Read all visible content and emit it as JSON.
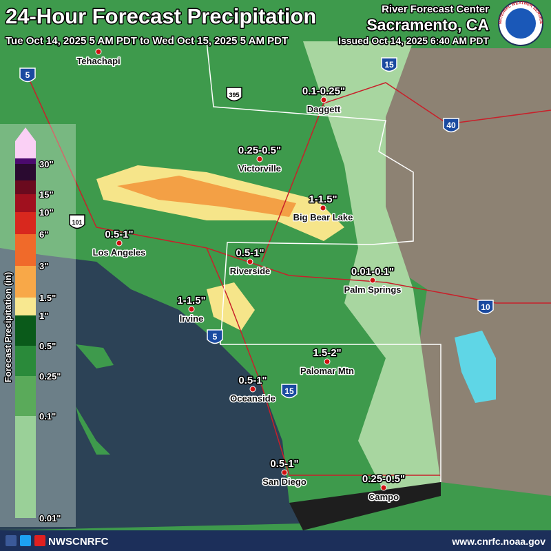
{
  "header": {
    "title": "24-Hour Forecast Precipitation",
    "period": "Tue Oct 14, 2025 5 AM PDT to Wed Oct 15, 2025 5 AM PDT",
    "office_line1": "River Forecast Center",
    "office_line2": "Sacramento, CA",
    "issued": "Issued Oct 14, 2025 6:40 AM PDT",
    "logo_text": "NATIONAL WEATHER SERVICE"
  },
  "legend": {
    "title": "Forecast Precipitation (in)",
    "labels": [
      "30\"",
      "15\"",
      "10\"",
      "6\"",
      "3\"",
      "1.5\"",
      "1\"",
      "0.5\"",
      "0.25\"",
      "0.1\"",
      "0.01\""
    ]
  },
  "places": [
    {
      "name": "Tehachapi"
    },
    {
      "name": "Daggett",
      "amount": "0.1-0.25\""
    },
    {
      "name": "Victorville",
      "amount": "0.25-0.5\""
    },
    {
      "name": "Big Bear Lake",
      "amount": "1-1.5\""
    },
    {
      "name": "Los Angeles",
      "amount": "0.5-1\""
    },
    {
      "name": "Riverside",
      "amount": "0.5-1\""
    },
    {
      "name": "Palm Springs",
      "amount": "0.01-0.1\""
    },
    {
      "name": "Irvine",
      "amount": "1-1.5\""
    },
    {
      "name": "Palomar Mtn",
      "amount": "1.5-2\""
    },
    {
      "name": "Oceanside",
      "amount": "0.5-1\""
    },
    {
      "name": "San Diego",
      "amount": "0.5-1\""
    },
    {
      "name": "Campo",
      "amount": "0.25-0.5\""
    }
  ],
  "shields": [
    "5",
    "15",
    "395",
    "40",
    "101",
    "10",
    "5",
    "15"
  ],
  "footer": {
    "social": "NWSCNRFC",
    "url": "www.cnrfc.noaa.gov"
  }
}
